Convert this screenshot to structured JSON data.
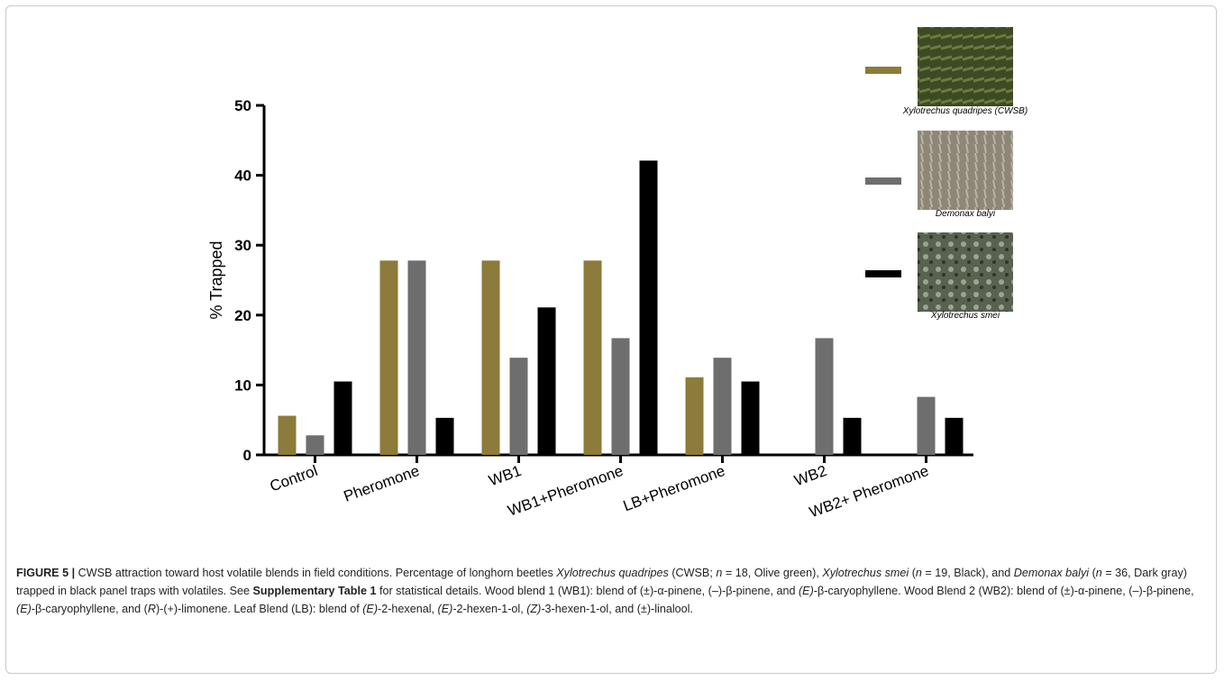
{
  "chart_data": {
    "type": "bar",
    "categories": [
      "Control",
      "Pheromone",
      "WB1",
      "WB1+Pheromone",
      "LB+Pheromone",
      "WB2",
      "WB2+ Pheromone"
    ],
    "y_label": "% Trapped",
    "ylim": [
      0,
      50
    ],
    "yticks": [
      0,
      10,
      20,
      30,
      40,
      50
    ],
    "series": [
      {
        "name": "Xylotrechus quadripes (CWSB)",
        "color": "#8c7b3a",
        "values": [
          5.6,
          27.8,
          27.8,
          27.8,
          11.1,
          0,
          0
        ]
      },
      {
        "name": "Demonax balyi",
        "color": "#6e6e6e",
        "values": [
          2.8,
          27.8,
          13.9,
          16.7,
          13.9,
          16.7,
          8.3
        ]
      },
      {
        "name": "Xylotrechus smei",
        "color": "#000000",
        "values": [
          10.5,
          5.3,
          21.1,
          42.1,
          10.5,
          5.3,
          5.3
        ]
      }
    ]
  },
  "caption": [
    {
      "text": "FIGURE 5 |",
      "style": "bold"
    },
    " CWSB attraction toward host volatile blends in field conditions. Percentage of longhorn beetles ",
    {
      "text": "Xylotrechus quadripes",
      "style": "italic"
    },
    " (CWSB; ",
    {
      "text": "n",
      "style": "italic"
    },
    " = 18, Olive green), ",
    {
      "text": "Xylotrechus smei",
      "style": "italic"
    },
    " (",
    {
      "text": "n",
      "style": "italic"
    },
    " = 19, Black), and ",
    {
      "text": "Demonax balyi",
      "style": "italic"
    },
    " (",
    {
      "text": "n",
      "style": "italic"
    },
    " = 36, Dark gray) trapped in black panel traps with volatiles. See ",
    {
      "text": "Supplementary Table 1",
      "style": "bold"
    },
    " for statistical details. Wood blend 1 (WB1): blend of (±)-α-pinene, (–)-β-pinene, and ",
    {
      "text": "(E)",
      "style": "italic"
    },
    "-β-caryophyllene. Wood Blend 2 (WB2): blend of (±)-α-pinene, (–)-β-pinene, ",
    {
      "text": "(E)",
      "style": "italic"
    },
    "-β-caryophyllene, and (",
    {
      "text": "R",
      "style": "italic"
    },
    ")-(+)-limonene. Leaf Blend (LB): blend of ",
    {
      "text": "(E)",
      "style": "italic"
    },
    "-2-hexenal, ",
    {
      "text": "(E)",
      "style": "italic"
    },
    "-2-hexen-1-ol, ",
    {
      "text": "(Z)",
      "style": "italic"
    },
    "-3-hexen-1-ol, and (±)-linalool."
  ]
}
